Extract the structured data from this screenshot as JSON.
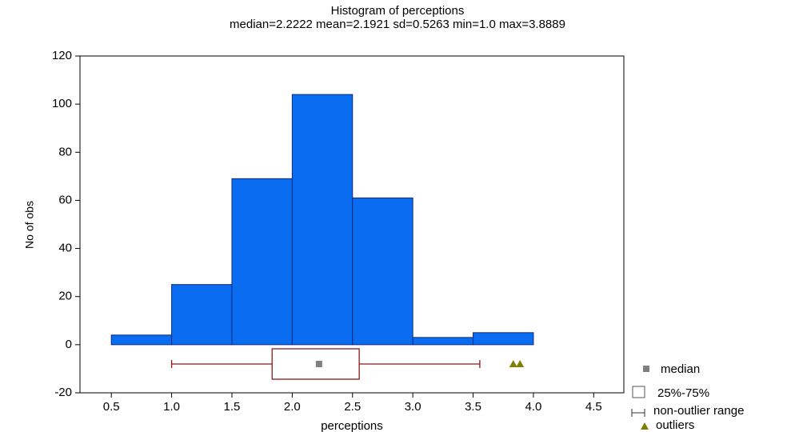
{
  "chart_data": {
    "type": "histogram",
    "title": "Histogram of perceptions",
    "subtitle": "median=2.2222  mean=2.1921  sd=0.5263  min=1.0  max=3.8889",
    "x_label": "perceptions",
    "y_label": "No of obs",
    "bins": [
      0.5,
      1.0,
      1.5,
      2.0,
      2.5,
      3.0,
      3.5,
      4.0,
      4.5
    ],
    "counts": [
      4,
      25,
      69,
      104,
      61,
      3,
      5,
      0
    ],
    "color": "#0a6cf0",
    "edge_color": "#0a2a80",
    "xlim": [
      0.24,
      4.75
    ],
    "ylim": [
      -20,
      120
    ],
    "xticks": [
      0.5,
      {
        "value": 1,
        "label": "1.0"
      },
      1.5,
      {
        "value": 2,
        "label": "2.0"
      },
      2.5,
      {
        "value": 3,
        "label": "3.0"
      },
      3.5,
      {
        "value": 4,
        "label": "4.0"
      },
      4.5
    ],
    "yticks": [
      -20,
      0,
      20,
      40,
      60,
      80,
      100,
      120
    ],
    "grid": false,
    "boxplot": {
      "whisker_low": 1.0,
      "q1": 1.8333,
      "median": 2.2222,
      "q3": 2.5556,
      "whisker_high": 3.5556,
      "outliers": [
        3.8333,
        3.8889
      ],
      "box_color": "#8b1a1a",
      "median_color": "#808080",
      "outlier_color": "#808000"
    },
    "legend": {
      "position": "bottom right",
      "median": "median",
      "box": "25%-75%",
      "range": "non-outlier range",
      "outliers": "outliers"
    }
  }
}
